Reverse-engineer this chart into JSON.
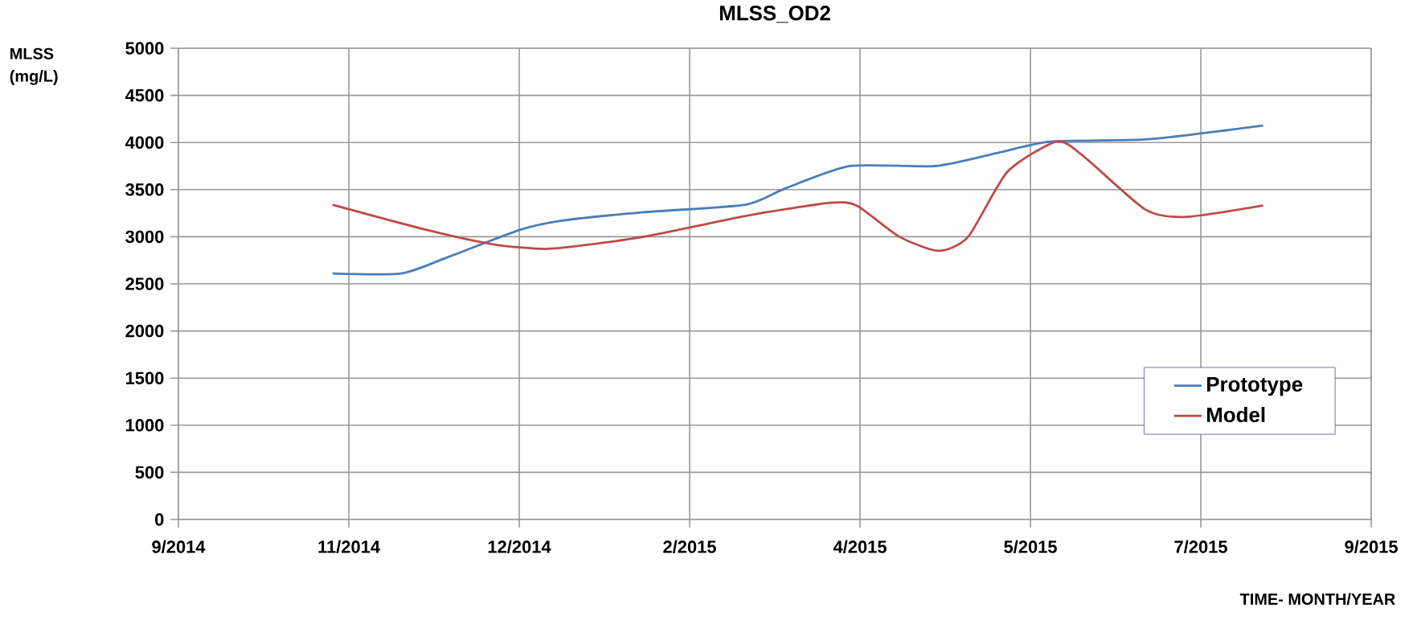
{
  "chart_data": {
    "type": "line",
    "title": "MLSS_OD2",
    "xlabel": "TIME- MONTH/YEAR",
    "ylabel": "MLSS (mg/L)",
    "xlim": [
      "2014-09-10",
      "2015-09-09"
    ],
    "xticks": [
      {
        "value": "2014-09-10",
        "label": "9/2014"
      },
      {
        "value": "2014-11-01",
        "label": "11/2014"
      },
      {
        "value": "2014-12-23",
        "label": "12/2014"
      },
      {
        "value": "2015-02-13",
        "label": "2/2015"
      },
      {
        "value": "2015-04-06",
        "label": "4/2015"
      },
      {
        "value": "2015-05-28",
        "label": "5/2015"
      },
      {
        "value": "2015-07-19",
        "label": "7/2015"
      },
      {
        "value": "2015-09-09",
        "label": "9/2015"
      }
    ],
    "ylim": [
      0,
      5000
    ],
    "yticks": [
      0,
      500,
      1000,
      1500,
      2000,
      2500,
      3000,
      3500,
      4000,
      4500,
      5000
    ],
    "grid": true,
    "legend": "right",
    "line_style": "solid",
    "marker": "none",
    "series": [
      {
        "name": "Prototype",
        "color": "#4a7ebb",
        "x": [
          "2014-10-27",
          "2014-11-17",
          "2014-12-01",
          "2014-12-23",
          "2015-01-05",
          "2015-01-30",
          "2015-03-02",
          "2015-03-14",
          "2015-04-03",
          "2015-04-29",
          "2015-05-18",
          "2015-06-03",
          "2015-07-01",
          "2015-07-20",
          "2015-08-07"
        ],
        "values": [
          2610,
          2610,
          2780,
          3070,
          3170,
          3260,
          3340,
          3510,
          3750,
          3750,
          3890,
          4010,
          4030,
          4100,
          4180
        ]
      },
      {
        "name": "Model",
        "color": "#be4b48",
        "x": [
          "2014-10-27",
          "2014-11-25",
          "2014-12-15",
          "2014-12-31",
          "2015-01-14",
          "2015-01-30",
          "2015-02-23",
          "2015-03-05",
          "2015-03-28",
          "2015-04-05",
          "2015-04-18",
          "2015-04-30",
          "2015-05-09",
          "2015-05-21",
          "2015-06-05",
          "2015-06-13",
          "2015-07-02",
          "2015-07-14",
          "2015-08-07"
        ],
        "values": [
          3340,
          3070,
          2920,
          2870,
          2920,
          3000,
          3170,
          3240,
          3360,
          3330,
          3000,
          2850,
          3000,
          3690,
          4010,
          3860,
          3290,
          3210,
          3330
        ]
      }
    ]
  }
}
